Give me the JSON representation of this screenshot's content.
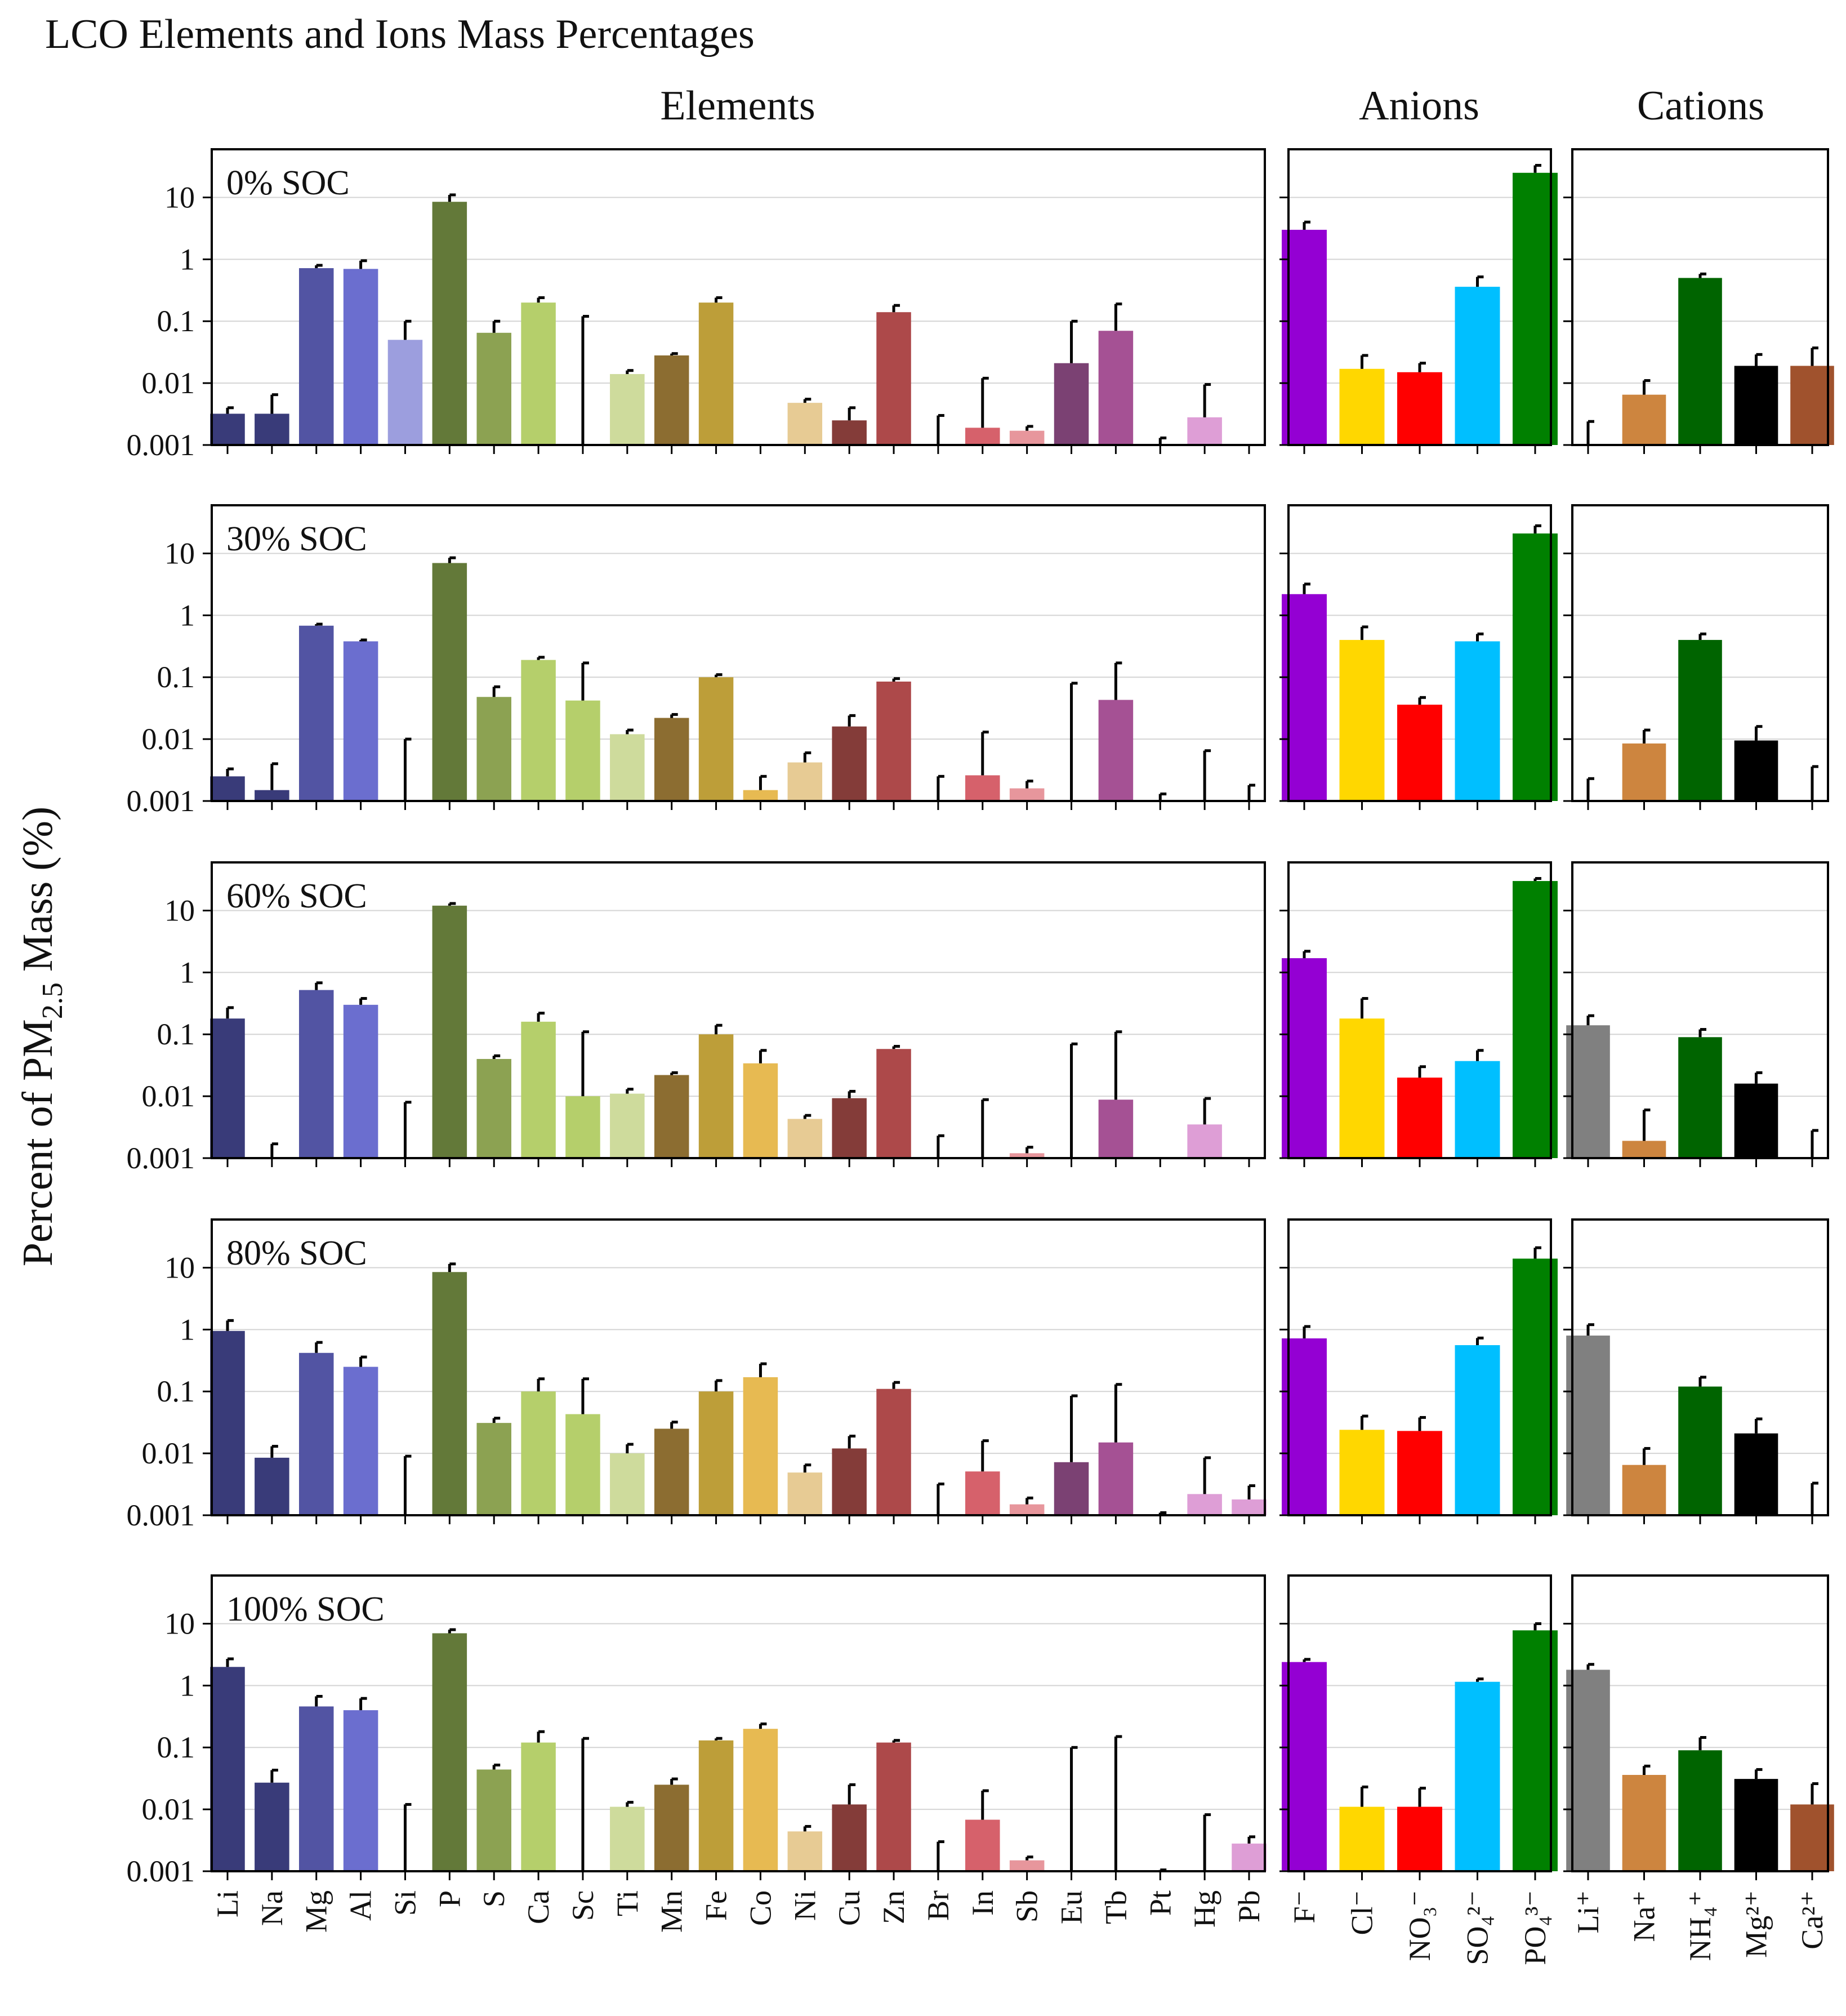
{
  "title": "LCO Elements and Ions Mass Percentages",
  "ylabel": "Percent of PM2.5 Mass (%)",
  "ylabel_main": "Percent of PM",
  "ylabel_sub": "2.5",
  "ylabel_end": " Mass (%)",
  "group_titles": [
    "Elements",
    "Anions",
    "Cations"
  ],
  "chart_data": {
    "type": "bar",
    "yscale": "log",
    "ylim": [
      0.001,
      60
    ],
    "yticks": [
      "0.001",
      "0.01",
      "0.1",
      "1",
      "10"
    ],
    "grid": true,
    "title": "LCO Elements and Ions Mass Percentages",
    "ylabel": "Percent of PM2.5 Mass (%)",
    "groups": [
      {
        "name": "Elements",
        "categories": [
          "Li",
          "Na",
          "Mg",
          "Al",
          "Si",
          "P",
          "S",
          "Ca",
          "Sc",
          "Ti",
          "Mn",
          "Fe",
          "Co",
          "Ni",
          "Cu",
          "Zn",
          "Br",
          "In",
          "Sb",
          "Eu",
          "Tb",
          "Pt",
          "Hg",
          "Pb"
        ],
        "colors": [
          "#393b79",
          "#393b79",
          "#5254a3",
          "#6b6ecf",
          "#9c9ede",
          "#637939",
          "#8ca252",
          "#b5cf6b",
          "#b5cf6b",
          "#cedb9c",
          "#8c6d31",
          "#bd9e39",
          "#e7ba52",
          "#e7cb94",
          "#843c39",
          "#ad494a",
          "#ad494a",
          "#d6616b",
          "#e7969c",
          "#7b4173",
          "#a55194",
          "#ce6dbd",
          "#de9ed6",
          "#de9ed6"
        ]
      },
      {
        "name": "Anions",
        "categories": [
          "F⁻",
          "Cl⁻",
          "NO₃⁻",
          "SO₄²⁻",
          "PO₄³⁻"
        ],
        "colors": [
          "#9400d3",
          "#ffd700",
          "#ff0000",
          "#00bfff",
          "#008000"
        ]
      },
      {
        "name": "Cations",
        "categories": [
          "Li⁺",
          "Na⁺",
          "NH₄⁺",
          "Mg²⁺",
          "Ca²⁺"
        ],
        "colors": [
          "#808080",
          "#cd853f",
          "#006400",
          "#000000",
          "#a0522d"
        ]
      }
    ],
    "panels": [
      {
        "label": "0% SOC",
        "Elements": {
          "values": [
            0.0032,
            0.0032,
            0.72,
            0.7,
            0.05,
            8.5,
            0.065,
            0.2,
            null,
            0.014,
            0.028,
            0.2,
            null,
            0.0048,
            0.0025,
            0.14,
            null,
            0.0019,
            0.0017,
            0.021,
            0.07,
            null,
            0.0028,
            null
          ],
          "err": [
            0.004,
            0.0065,
            0.8,
            0.95,
            0.1,
            11,
            0.1,
            0.24,
            0.12,
            0.016,
            0.03,
            0.24,
            null,
            0.0055,
            0.004,
            0.18,
            0.003,
            0.012,
            0.002,
            0.1,
            0.19,
            0.0013,
            0.0095,
            null
          ]
        },
        "Anions": {
          "values": [
            3.0,
            0.017,
            0.015,
            0.36,
            25
          ],
          "err": [
            4,
            0.028,
            0.021,
            0.52,
            33
          ]
        },
        "Cations": {
          "values": [
            null,
            0.0065,
            0.5,
            0.019,
            0.019
          ],
          "err": [
            0.0024,
            0.011,
            0.58,
            0.029,
            0.037
          ]
        }
      },
      {
        "label": "30% SOC",
        "Elements": {
          "values": [
            0.0025,
            0.0015,
            0.68,
            0.38,
            null,
            7.0,
            0.048,
            0.19,
            0.042,
            0.012,
            0.022,
            0.1,
            0.0015,
            0.0042,
            0.016,
            0.085,
            null,
            0.0026,
            0.0016,
            null,
            0.043,
            null,
            null,
            0.001
          ],
          "err": [
            0.0033,
            0.004,
            0.72,
            0.4,
            0.01,
            8.5,
            0.07,
            0.21,
            0.17,
            0.014,
            0.025,
            0.11,
            0.0025,
            0.006,
            0.024,
            0.095,
            0.0025,
            0.013,
            0.0021,
            0.08,
            0.17,
            0.0013,
            0.0065,
            0.0018
          ]
        },
        "Anions": {
          "values": [
            2.2,
            0.4,
            0.036,
            0.38,
            21
          ],
          "err": [
            3.2,
            0.65,
            0.047,
            0.5,
            28
          ]
        },
        "Cations": {
          "values": [
            null,
            0.0085,
            0.4,
            0.0095,
            null
          ],
          "err": [
            0.0023,
            0.014,
            0.5,
            0.016,
            0.0036
          ]
        }
      },
      {
        "label": "60% SOC",
        "Elements": {
          "values": [
            0.18,
            null,
            0.52,
            0.3,
            null,
            12,
            0.04,
            0.16,
            0.01,
            0.011,
            0.022,
            0.1,
            0.034,
            0.0043,
            0.0093,
            0.058,
            null,
            null,
            0.0012,
            null,
            0.0088,
            null,
            0.0035,
            null
          ],
          "err": [
            0.27,
            0.0017,
            0.68,
            0.38,
            0.008,
            13,
            0.045,
            0.22,
            0.11,
            0.013,
            0.024,
            0.14,
            0.055,
            0.0049,
            0.012,
            0.064,
            0.0023,
            0.0088,
            0.0015,
            0.07,
            0.11,
            null,
            0.0092,
            null
          ]
        },
        "Anions": {
          "values": [
            1.7,
            0.18,
            0.02,
            0.037,
            30
          ],
          "err": [
            2.2,
            0.38,
            0.03,
            0.055,
            33
          ]
        },
        "Cations": {
          "values": [
            0.14,
            0.0019,
            0.09,
            0.016,
            null
          ],
          "err": [
            0.2,
            0.006,
            0.12,
            0.024,
            0.0028
          ]
        }
      },
      {
        "label": "80% SOC",
        "Elements": {
          "values": [
            0.95,
            0.0085,
            0.42,
            0.25,
            null,
            8.5,
            0.031,
            0.1,
            0.043,
            0.01,
            0.025,
            0.1,
            0.17,
            0.0049,
            0.012,
            0.11,
            null,
            0.0051,
            0.0015,
            0.0072,
            0.015,
            null,
            0.0022,
            0.0018
          ],
          "err": [
            1.4,
            0.013,
            0.62,
            0.36,
            0.009,
            11.5,
            0.037,
            0.16,
            0.16,
            0.014,
            0.032,
            0.15,
            0.28,
            0.0065,
            0.019,
            0.14,
            0.0032,
            0.016,
            0.0019,
            0.085,
            0.13,
            0.0011,
            0.0085,
            0.003
          ]
        },
        "Anions": {
          "values": [
            0.72,
            0.024,
            0.023,
            0.56,
            14
          ],
          "err": [
            1.12,
            0.04,
            0.038,
            0.73,
            21
          ]
        },
        "Cations": {
          "values": [
            0.8,
            0.0065,
            0.12,
            0.021,
            null
          ],
          "err": [
            1.2,
            0.012,
            0.17,
            0.036,
            0.0033
          ]
        }
      },
      {
        "label": "100% SOC",
        "Elements": {
          "values": [
            2.0,
            0.027,
            0.46,
            0.4,
            null,
            7.0,
            0.044,
            0.12,
            null,
            0.011,
            0.025,
            0.13,
            0.2,
            0.0044,
            0.012,
            0.12,
            null,
            0.0068,
            0.0015,
            null,
            null,
            null,
            null,
            0.0028
          ],
          "err": [
            2.7,
            0.043,
            0.67,
            0.62,
            0.012,
            8.0,
            0.052,
            0.18,
            0.14,
            0.013,
            0.031,
            0.14,
            0.24,
            0.0053,
            0.025,
            0.13,
            0.003,
            0.02,
            0.0017,
            0.1,
            0.15,
            0.00105,
            0.0082,
            0.0036
          ]
        },
        "Anions": {
          "values": [
            2.4,
            0.011,
            0.011,
            1.15,
            7.8
          ],
          "err": [
            2.65,
            0.023,
            0.022,
            1.28,
            10
          ]
        },
        "Cations": {
          "values": [
            1.8,
            0.036,
            0.09,
            0.031,
            0.012
          ],
          "err": [
            2.2,
            0.05,
            0.145,
            0.044,
            0.026
          ]
        }
      }
    ]
  }
}
